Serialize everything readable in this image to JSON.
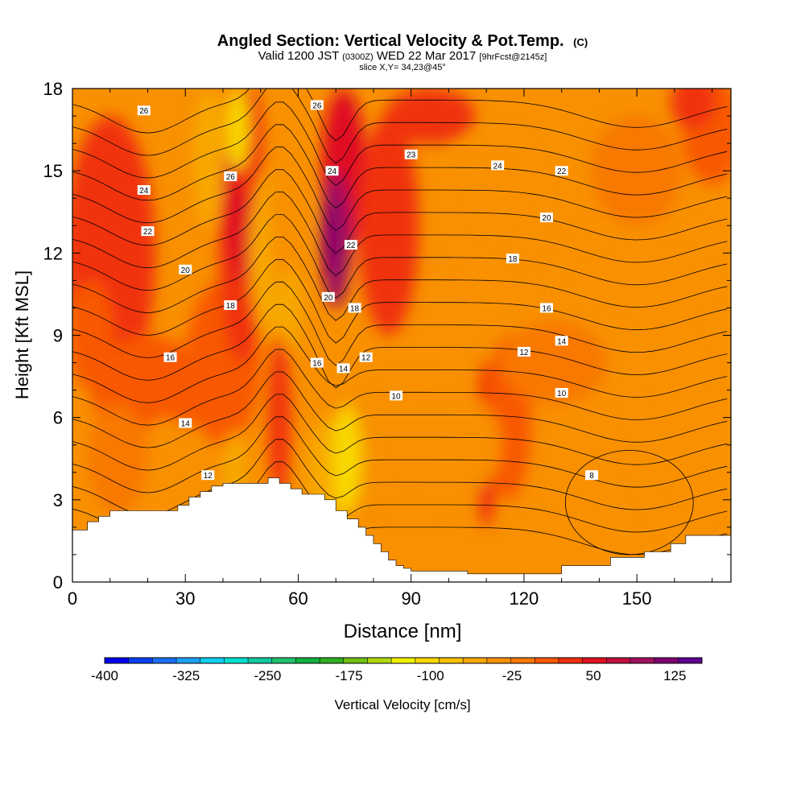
{
  "chart_data": {
    "type": "heatmap",
    "title": "Angled Section: Vertical Velocity & Pot.Temp.",
    "title_unit": "(C)",
    "subtitle_pre": "Valid 1200 JST",
    "subtitle_z": "(0300Z)",
    "subtitle_date": "WED 22 Mar 2017",
    "subtitle_fcst": "[9hrFcst@2145z]",
    "slice_label": "slice X,Y= 34,23@45°",
    "xlabel": "Distance [nm]",
    "ylabel": "Height [Kft MSL]",
    "xlim": [
      0,
      175
    ],
    "ylim": [
      0,
      18
    ],
    "xticks": [
      0,
      30,
      60,
      90,
      120,
      150
    ],
    "yticks": [
      0,
      3,
      6,
      9,
      12,
      15,
      18
    ],
    "colorbar": {
      "label": "Vertical Velocity [cm/s]",
      "tick_labels": [
        "-400",
        "-325",
        "-250",
        "-175",
        "-100",
        "-25",
        "50",
        "125"
      ],
      "colors": [
        "#0000ee",
        "#0a3ef0",
        "#1a6ef5",
        "#1ea0f5",
        "#10d0f0",
        "#00dfd0",
        "#10c8a0",
        "#20c070",
        "#10b040",
        "#30b020",
        "#70c010",
        "#b0d810",
        "#f0f000",
        "#f8d800",
        "#f8c000",
        "#f8a800",
        "#f89000",
        "#f87800",
        "#f85800",
        "#f03010",
        "#e01020",
        "#c01040",
        "#a01060",
        "#800070",
        "#600090"
      ],
      "vmin": -400,
      "vmax": 150
    },
    "terrain_height_kft": {
      "x": [
        0,
        4,
        7,
        10,
        28,
        31,
        34,
        37,
        40,
        52,
        55,
        58,
        61,
        67,
        70,
        73,
        76,
        78,
        80,
        82,
        84,
        86,
        88,
        90,
        105,
        108,
        130,
        143,
        152,
        159,
        163,
        175
      ],
      "h": [
        1.9,
        2.2,
        2.4,
        2.6,
        2.8,
        3.1,
        3.3,
        3.5,
        3.6,
        3.8,
        3.6,
        3.4,
        3.2,
        3.0,
        2.6,
        2.3,
        2.0,
        1.7,
        1.4,
        1.1,
        0.8,
        0.6,
        0.5,
        0.4,
        0.3,
        0.3,
        0.6,
        0.9,
        1.1,
        1.4,
        1.7,
        1.7
      ]
    },
    "theta_contour_labels": [
      {
        "value": "26",
        "x": 19,
        "y": 17.2
      },
      {
        "value": "26",
        "x": 42,
        "y": 14.8
      },
      {
        "value": "26",
        "x": 65,
        "y": 17.4
      },
      {
        "value": "24",
        "x": 19,
        "y": 14.3
      },
      {
        "value": "24",
        "x": 69,
        "y": 15.0
      },
      {
        "value": "24",
        "x": 113,
        "y": 15.2
      },
      {
        "value": "23",
        "x": 90,
        "y": 15.6
      },
      {
        "value": "22",
        "x": 20,
        "y": 12.8
      },
      {
        "value": "22",
        "x": 74,
        "y": 12.3
      },
      {
        "value": "22",
        "x": 130,
        "y": 15.0
      },
      {
        "value": "20",
        "x": 30,
        "y": 11.4
      },
      {
        "value": "20",
        "x": 68,
        "y": 10.4
      },
      {
        "value": "20",
        "x": 126,
        "y": 13.3
      },
      {
        "value": "18",
        "x": 42,
        "y": 10.1
      },
      {
        "value": "18",
        "x": 75,
        "y": 10.0
      },
      {
        "value": "18",
        "x": 117,
        "y": 11.8
      },
      {
        "value": "16",
        "x": 26,
        "y": 8.2
      },
      {
        "value": "16",
        "x": 65,
        "y": 8.0
      },
      {
        "value": "16",
        "x": 126,
        "y": 10.0
      },
      {
        "value": "14",
        "x": 30,
        "y": 5.8
      },
      {
        "value": "14",
        "x": 72,
        "y": 7.8
      },
      {
        "value": "14",
        "x": 130,
        "y": 8.8
      },
      {
        "value": "12",
        "x": 36,
        "y": 3.9
      },
      {
        "value": "12",
        "x": 78,
        "y": 8.2
      },
      {
        "value": "12",
        "x": 120,
        "y": 8.4
      },
      {
        "value": "10",
        "x": 86,
        "y": 6.8
      },
      {
        "value": "10",
        "x": 130,
        "y": 6.9
      },
      {
        "value": "8",
        "x": 138,
        "y": 3.9
      }
    ]
  }
}
